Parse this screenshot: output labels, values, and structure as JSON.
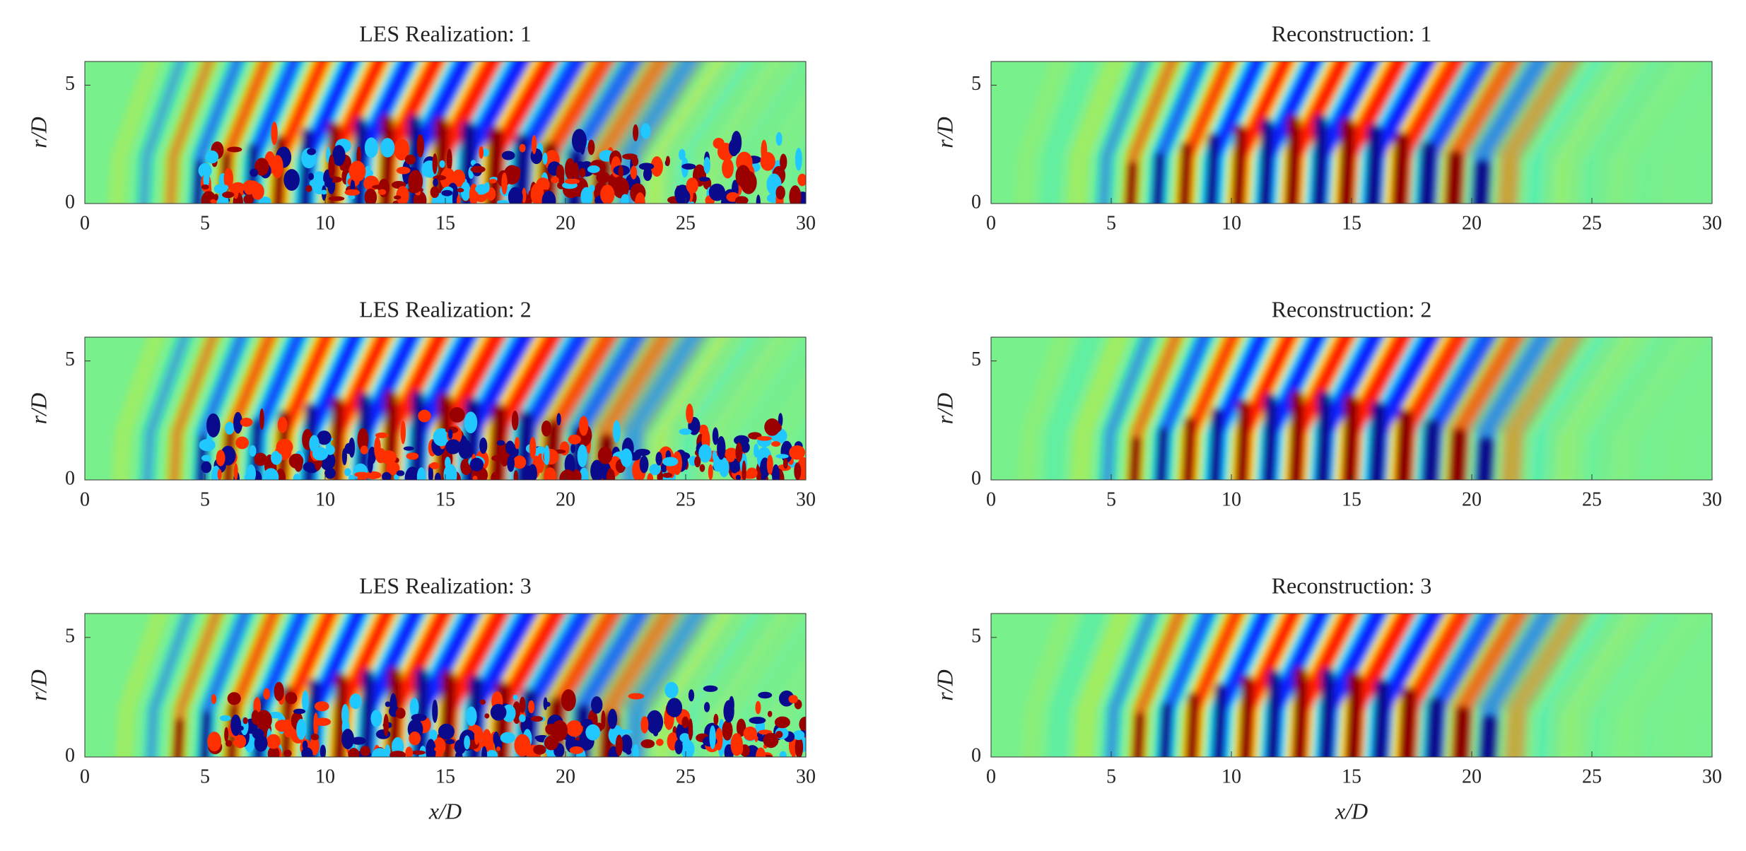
{
  "chart_data": [
    {
      "type": "heatmap",
      "title": "LES Realization: 1",
      "ylabel": "r/D",
      "xlim": [
        0,
        30
      ],
      "ylim": [
        0,
        6
      ],
      "xticks": [
        0,
        5,
        10,
        15,
        20,
        25,
        30
      ],
      "yticks": [
        0,
        5
      ],
      "colormap": "jet"
    },
    {
      "type": "heatmap",
      "title": "LES Realization: 2",
      "ylabel": "r/D",
      "xlim": [
        0,
        30
      ],
      "ylim": [
        0,
        6
      ],
      "xticks": [
        0,
        5,
        10,
        15,
        20,
        25,
        30
      ],
      "yticks": [
        0,
        5
      ],
      "colormap": "jet"
    },
    {
      "type": "heatmap",
      "title": "LES Realization: 3",
      "xlabel": "x/D",
      "ylabel": "r/D",
      "xlim": [
        0,
        30
      ],
      "ylim": [
        0,
        6
      ],
      "xticks": [
        0,
        5,
        10,
        15,
        20,
        25,
        30
      ],
      "yticks": [
        0,
        5
      ],
      "colormap": "jet"
    },
    {
      "type": "heatmap",
      "title": "Reconstruction: 1",
      "ylabel": "r/D",
      "xlim": [
        0,
        30
      ],
      "ylim": [
        0,
        6
      ],
      "xticks": [
        0,
        5,
        10,
        15,
        20,
        25,
        30
      ],
      "yticks": [
        0,
        5
      ],
      "colormap": "jet"
    },
    {
      "type": "heatmap",
      "title": "Reconstruction: 2",
      "ylabel": "r/D",
      "xlim": [
        0,
        30
      ],
      "ylim": [
        0,
        6
      ],
      "xticks": [
        0,
        5,
        10,
        15,
        20,
        25,
        30
      ],
      "yticks": [
        0,
        5
      ],
      "colormap": "jet"
    },
    {
      "type": "heatmap",
      "title": "Reconstruction: 3",
      "xlabel": "x/D",
      "ylabel": "r/D",
      "xlim": [
        0,
        30
      ],
      "ylim": [
        0,
        6
      ],
      "xticks": [
        0,
        5,
        10,
        15,
        20,
        25,
        30
      ],
      "yticks": [
        0,
        5
      ],
      "colormap": "jet"
    }
  ]
}
